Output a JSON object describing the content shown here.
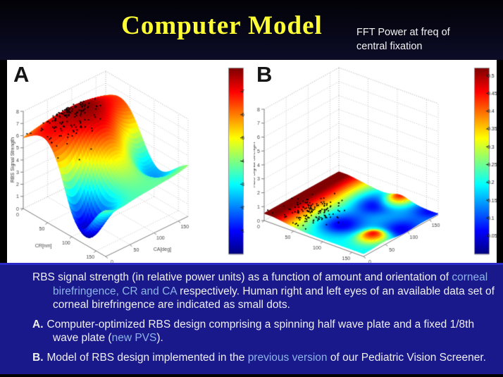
{
  "slide": {
    "title": "Computer Model",
    "subtitle_line1": "FFT Power at freq of",
    "subtitle_line2": "central fixation"
  },
  "panels": {
    "a_label": "A",
    "b_label": "B"
  },
  "colors": {
    "title": "#ffff33",
    "caption_bg": "#19198c",
    "caption_border": "#2a2ac8",
    "highlight": "#8db4e8",
    "plot_bg": "#ffffff",
    "scatter": "#000000"
  },
  "caption": {
    "paragraphs": [
      {
        "label": "",
        "segments": [
          {
            "text": "RBS signal strength (in relative power units) as a function of amount and orientation of ",
            "style": "normal"
          },
          {
            "text": "corneal birefringence, CR and CA",
            "style": "highlight"
          },
          {
            "text": " respectively. Human right and left eyes of an available data set of corneal birefringence are indicated as small dots.",
            "style": "normal"
          }
        ]
      },
      {
        "label": "A.",
        "segments": [
          {
            "text": "Computer-optimized RBS design comprising a spinning half wave plate and a fixed 1/8th wave plate (",
            "style": "normal"
          },
          {
            "text": "new PVS",
            "style": "highlight"
          },
          {
            "text": ").",
            "style": "normal"
          }
        ]
      },
      {
        "label": "B.",
        "segments": [
          {
            "text": "Model of RBS design implemented in the ",
            "style": "normal"
          },
          {
            "text": "previous version",
            "style": "highlight"
          },
          {
            "text": " of our Pediatric Vision Screener.",
            "style": "normal"
          }
        ]
      }
    ]
  },
  "chart_data": [
    {
      "panel": "A",
      "type": "surface3d",
      "colormap": "jet",
      "xlabel": "CR[nm]",
      "ylabel": "CA[deg]",
      "zlabel": "RBS Signal Strength",
      "x_range": [
        0,
        160
      ],
      "y_range": [
        0,
        160
      ],
      "z_range": [
        0,
        8
      ],
      "x_ticks": [
        0,
        50,
        100,
        150
      ],
      "y_ticks": [
        0,
        50,
        100,
        150
      ],
      "z_ticks": [
        0,
        1,
        2,
        3,
        4,
        5,
        6,
        7,
        8
      ],
      "clim": [
        0,
        8
      ],
      "colorbar": {
        "min": 0,
        "max": 8,
        "tick_values": [
          1,
          2,
          3,
          4,
          5,
          6,
          7
        ],
        "tick_labels": [
          "1",
          "2",
          "3",
          "4",
          "5",
          "6",
          "7"
        ]
      },
      "surface_model": {
        "base": 4.6,
        "min": 0.05,
        "max": 7.9,
        "gaussians": [
          {
            "a": 3.3,
            "cx": 0.3,
            "wx": 0.13,
            "cy": 0.4,
            "wy": 0.55
          },
          {
            "a": 1.2,
            "cx": 0.45,
            "wx": 0.3,
            "cy": 0.95,
            "wy": 0.15
          },
          {
            "a": -5.2,
            "cx": 0.66,
            "wx": 0.055,
            "cy": 0.1,
            "wy": 0.045
          },
          {
            "a": -4.2,
            "cx": 0.6,
            "wx": 0.09,
            "cy": 0.92,
            "wy": 0.08
          },
          {
            "a": -1.0,
            "cx": 1.0,
            "wx": 0.15,
            "cy": 0.45,
            "wy": 0.2
          }
        ]
      },
      "scatter": {
        "count": 150,
        "center_x": 0.27,
        "center_y": 0.3,
        "sd_x": 0.1,
        "sd_y": 0.13,
        "z_offset": 0.12,
        "color": "#000000"
      },
      "description": "Computer-optimized RBS design (new PVS): spinning half wave plate + fixed 1/8th wave plate"
    },
    {
      "panel": "B",
      "type": "surface3d",
      "colormap": "jet",
      "xlabel": "",
      "ylabel": "",
      "zlabel": "RBS Signal Strength",
      "x_range": [
        0,
        160
      ],
      "y_range": [
        0,
        160
      ],
      "z_range": [
        0,
        8
      ],
      "x_ticks": [
        0,
        50,
        100,
        150
      ],
      "y_ticks": [
        0,
        50,
        100,
        150
      ],
      "z_ticks": [
        0,
        1,
        2,
        3,
        4,
        5,
        6,
        7,
        8
      ],
      "clim": [
        0,
        0.52
      ],
      "colorbar": {
        "min": 0,
        "max": 0.52,
        "tick_values": [
          0.05,
          0.1,
          0.15,
          0.2,
          0.25,
          0.3,
          0.35,
          0.4,
          0.45,
          0.5
        ],
        "tick_labels": [
          "0.05",
          "0.1",
          "0.15",
          "0.2",
          "0.25",
          "0.3",
          "0.35",
          "0.4",
          "0.45",
          "0.5"
        ]
      },
      "surface_model": {
        "base": 0.2,
        "min": 0.02,
        "max": 0.52,
        "gaussians": [
          {
            "a": 0.36,
            "cx": 0.0,
            "wx": 0.0784,
            "cy": 0.5,
            "wy": 9.0
          },
          {
            "a": 0.3,
            "cx": 0.88,
            "wx": 0.012,
            "cy": 0.3,
            "wy": 0.02
          },
          {
            "a": 0.3,
            "cx": 0.62,
            "wx": 0.012,
            "cy": 0.98,
            "wy": 0.02
          },
          {
            "a": -0.155,
            "cx": 0.52,
            "wx": 0.035,
            "cy": 0.33,
            "wy": 0.045
          },
          {
            "a": -0.155,
            "cx": 0.52,
            "wx": 0.035,
            "cy": 0.8,
            "wy": 0.045
          },
          {
            "a": -0.15,
            "cx": 0.95,
            "wx": 0.03,
            "cy": 0.55,
            "wy": 0.06
          },
          {
            "a": -0.13,
            "cx": 0.93,
            "wx": 0.03,
            "cy": 1.0,
            "wy": 0.03
          }
        ]
      },
      "scatter": {
        "count": 150,
        "center_x": 0.27,
        "center_y": 0.3,
        "sd_x": 0.1,
        "sd_y": 0.13,
        "z_offset": 0.15,
        "color": "#000000"
      },
      "description": "Model of RBS design implemented in the previous version of the Pediatric Vision Screener"
    }
  ]
}
